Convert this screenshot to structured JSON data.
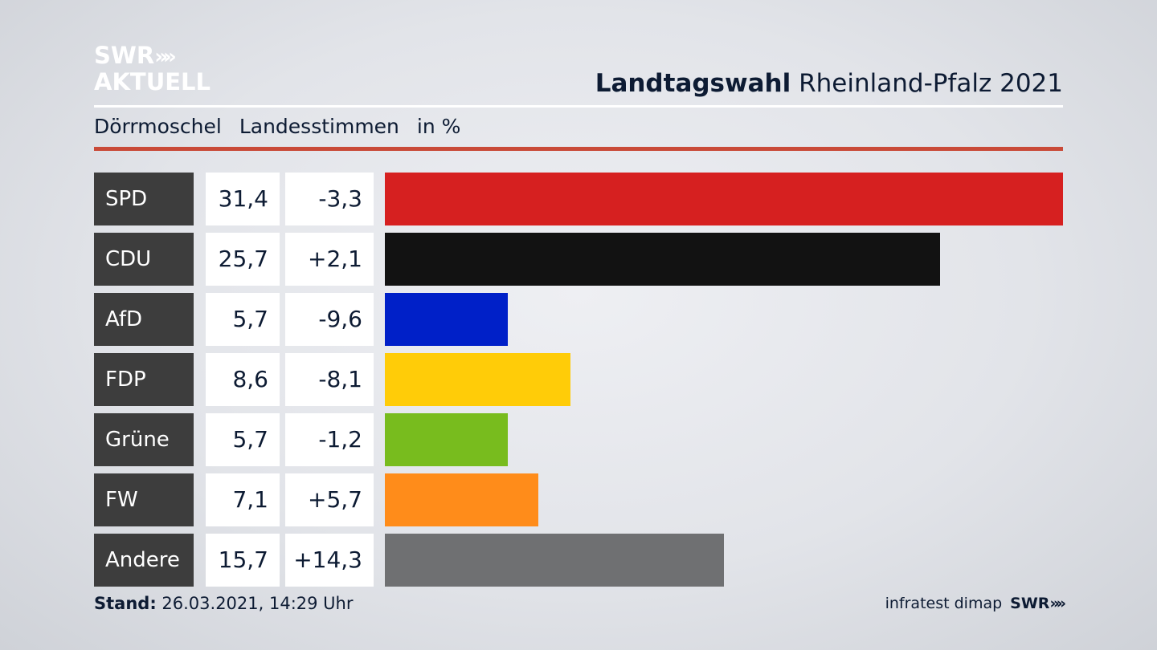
{
  "header": {
    "logo_line1": "SWR",
    "logo_chevrons": "»",
    "logo_line2": "AKTUELL",
    "title_bold": "Landtagswahl",
    "title_rest": " Rheinland-Pfalz 2021",
    "location": "Dörrmoschel",
    "measure": "Landesstimmen",
    "unit": "in %"
  },
  "colors": {
    "SPD": "#d62020",
    "CDU": "#121212",
    "AfD": "#0020c8",
    "FDP": "#ffcc08",
    "Grüne": "#78bc1e",
    "FW": "#ff8c1a",
    "Andere": "#6f7072",
    "accent_rule": "#c94a38"
  },
  "chart_data": {
    "type": "bar",
    "orientation": "horizontal",
    "categories": [
      "SPD",
      "CDU",
      "AfD",
      "FDP",
      "Grüne",
      "FW",
      "Andere"
    ],
    "values": [
      31.4,
      25.7,
      5.7,
      8.6,
      5.7,
      7.1,
      15.7
    ],
    "value_labels": [
      "31,4",
      "25,7",
      "5,7",
      "8,6",
      "5,7",
      "7,1",
      "15,7"
    ],
    "change_labels": [
      "-3,3",
      "+2,1",
      "-9,6",
      "-8,1",
      "-1,2",
      "+5,7",
      "+14,3"
    ],
    "changes": [
      -3.3,
      2.1,
      -9.6,
      -8.1,
      -1.2,
      5.7,
      14.3
    ],
    "xlim": [
      0,
      31.4
    ]
  },
  "footer": {
    "stand_label": "Stand:",
    "stand_value": " 26.03.2021, 14:29 Uhr",
    "source": "infratest dimap",
    "brand": "SWR",
    "brand_chevrons": "»"
  }
}
